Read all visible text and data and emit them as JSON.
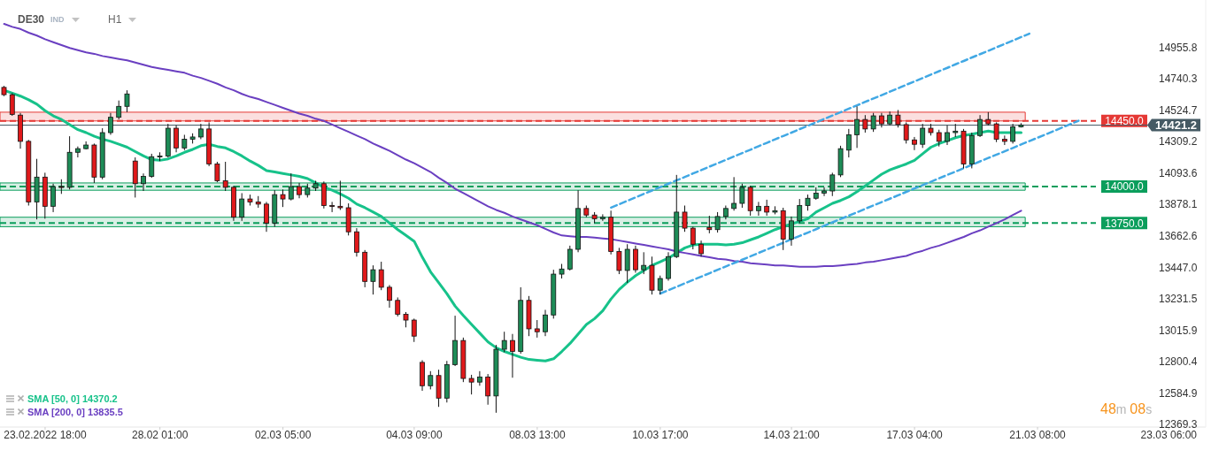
{
  "chart_data": {
    "type": "candlestick",
    "title": "DE30",
    "annotations": [
      "IND",
      "H1",
      "48m 08s"
    ],
    "categories": [
      null,
      null,
      null,
      null,
      null,
      "23.02.2022 18:00",
      null,
      null,
      null,
      null,
      null,
      null,
      null,
      null,
      null,
      null,
      null,
      null,
      null,
      "28.02 01:00",
      null,
      null,
      null,
      null,
      null,
      null,
      null,
      null,
      null,
      null,
      null,
      null,
      null,
      null,
      "02.03 05:00",
      null,
      null,
      null,
      null,
      null,
      null,
      null,
      null,
      null,
      null,
      null,
      null,
      null,
      null,
      null,
      "04.03 09:00",
      null,
      null,
      null,
      null,
      null,
      null,
      null,
      null,
      null,
      null,
      null,
      null,
      null,
      null,
      "08.03 13:00",
      null,
      null,
      null,
      null,
      null,
      null,
      null,
      null,
      null,
      null,
      null,
      null,
      null,
      null,
      "10.03 17:00",
      null,
      null,
      null,
      null,
      null,
      null,
      null,
      null,
      null,
      null,
      null,
      null,
      null,
      null,
      null,
      "14.03 21:00",
      null,
      null,
      null,
      null,
      null,
      null,
      null,
      null,
      null,
      null,
      null,
      null,
      null,
      null,
      "17.03 04:00",
      null,
      null,
      null,
      null,
      null,
      null,
      null,
      null,
      null,
      null,
      null,
      null,
      null,
      null,
      "21.03 08:00",
      null,
      null,
      null,
      null,
      null,
      null,
      null,
      null,
      null,
      null,
      null,
      null,
      null,
      null,
      null,
      "23.03 06:00",
      null,
      null,
      null,
      null
    ],
    "ohlc": [
      [
        14680,
        14690,
        14620,
        14630
      ],
      [
        14630,
        14640,
        14485,
        14495
      ],
      [
        14490,
        14505,
        14260,
        14310
      ],
      [
        14310,
        14320,
        13870,
        13895
      ],
      [
        13895,
        14190,
        13775,
        14065
      ],
      [
        14065,
        14095,
        13780,
        13865
      ],
      [
        13865,
        14020,
        13825,
        14000
      ],
      [
        14000,
        14050,
        13950,
        13995
      ],
      [
        13995,
        14345,
        13980,
        14235
      ],
      [
        14235,
        14275,
        14200,
        14260
      ],
      [
        14260,
        14310,
        14255,
        14285
      ],
      [
        14285,
        14295,
        14025,
        14065
      ],
      [
        14065,
        14400,
        14050,
        14370
      ],
      [
        14370,
        14505,
        14355,
        14475
      ],
      [
        14475,
        14590,
        14460,
        14550
      ],
      [
        14550,
        14660,
        14510,
        14635
      ],
      [
        14175,
        14200,
        13925,
        14020
      ],
      [
        14020,
        14090,
        13970,
        14070
      ],
      [
        14070,
        14225,
        14060,
        14205
      ],
      [
        14205,
        14235,
        14175,
        14210
      ],
      [
        14210,
        14430,
        14200,
        14400
      ],
      [
        14400,
        14420,
        14235,
        14265
      ],
      [
        14265,
        14355,
        14250,
        14325
      ],
      [
        14325,
        14365,
        14295,
        14340
      ],
      [
        14340,
        14430,
        14325,
        14395
      ],
      [
        14395,
        14440,
        14140,
        14155
      ],
      [
        14155,
        14170,
        14030,
        14040
      ],
      [
        14040,
        14170,
        13970,
        13995
      ],
      [
        13995,
        14005,
        13765,
        13790
      ],
      [
        13790,
        13955,
        13765,
        13915
      ],
      [
        13915,
        13945,
        13870,
        13895
      ],
      [
        13895,
        13935,
        13855,
        13880
      ],
      [
        13880,
        13895,
        13690,
        13750
      ],
      [
        13750,
        13975,
        13725,
        13945
      ],
      [
        13945,
        13980,
        13860,
        13915
      ],
      [
        13915,
        14090,
        13905,
        14000
      ],
      [
        14000,
        14025,
        13920,
        13945
      ],
      [
        13945,
        14020,
        13925,
        13990
      ],
      [
        13990,
        14040,
        13970,
        14020
      ],
      [
        14020,
        14035,
        13850,
        13870
      ],
      [
        13870,
        13895,
        13825,
        13865
      ],
      [
        13865,
        14040,
        13840,
        13855
      ],
      [
        13855,
        13885,
        13665,
        13690
      ],
      [
        13690,
        13715,
        13520,
        13550
      ],
      [
        13550,
        13565,
        13310,
        13350
      ],
      [
        13350,
        13460,
        13260,
        13430
      ],
      [
        13430,
        13485,
        13290,
        13310
      ],
      [
        13310,
        13325,
        13170,
        13220
      ],
      [
        13220,
        13240,
        13110,
        13125
      ],
      [
        13125,
        13140,
        13035,
        13085
      ],
      [
        13085,
        13095,
        12935,
        12975
      ],
      [
        12795,
        12810,
        12600,
        12635
      ],
      [
        12635,
        12735,
        12610,
        12705
      ],
      [
        12705,
        12745,
        12490,
        12550
      ],
      [
        12550,
        12805,
        12520,
        12780
      ],
      [
        12780,
        13115,
        12770,
        12945
      ],
      [
        12945,
        12965,
        12660,
        12685
      ],
      [
        12685,
        12710,
        12575,
        12660
      ],
      [
        12660,
        12735,
        12635,
        12695
      ],
      [
        12695,
        12715,
        12505,
        12565
      ],
      [
        12565,
        12915,
        12450,
        12885
      ],
      [
        12885,
        13005,
        12865,
        12945
      ],
      [
        12945,
        12990,
        12690,
        12870
      ],
      [
        12870,
        13310,
        12855,
        13220
      ],
      [
        13220,
        13250,
        12975,
        13025
      ],
      [
        13025,
        13085,
        12965,
        13005
      ],
      [
        13005,
        13155,
        12975,
        13120
      ],
      [
        13120,
        13430,
        13095,
        13400
      ],
      [
        13400,
        13470,
        13370,
        13435
      ],
      [
        13435,
        13595,
        13425,
        13570
      ],
      [
        13570,
        13975,
        13550,
        13850
      ],
      [
        13850,
        13870,
        13790,
        13805
      ],
      [
        13805,
        13825,
        13750,
        13780
      ],
      [
        13780,
        13810,
        13765,
        13790
      ],
      [
        13790,
        13835,
        13535,
        13555
      ],
      [
        13555,
        13580,
        13400,
        13425
      ],
      [
        13425,
        13605,
        13340,
        13570
      ],
      [
        13570,
        13595,
        13410,
        13430
      ],
      [
        13430,
        13550,
        13400,
        13460
      ],
      [
        13460,
        13520,
        13260,
        13290
      ],
      [
        13290,
        13390,
        13260,
        13370
      ],
      [
        13370,
        13550,
        13355,
        13520
      ],
      [
        13520,
        14080,
        13510,
        13825
      ],
      [
        13825,
        13870,
        13690,
        13715
      ],
      [
        13715,
        13725,
        13570,
        13605
      ],
      [
        13605,
        13630,
        13520,
        13540
      ],
      [
        13720,
        13800,
        13680,
        13705
      ],
      [
        13705,
        13825,
        13685,
        13795
      ],
      [
        13795,
        13870,
        13775,
        13850
      ],
      [
        13850,
        14065,
        13835,
        13885
      ],
      [
        13885,
        14020,
        13855,
        13995
      ],
      [
        13995,
        14005,
        13800,
        13835
      ],
      [
        13835,
        13895,
        13800,
        13865
      ],
      [
        13865,
        13910,
        13800,
        13825
      ],
      [
        13825,
        13865,
        13810,
        13835
      ],
      [
        13835,
        13855,
        13565,
        13640
      ],
      [
        13640,
        13795,
        13595,
        13765
      ],
      [
        13765,
        13915,
        13750,
        13870
      ],
      [
        13870,
        13945,
        13835,
        13920
      ],
      [
        13920,
        13995,
        13910,
        13955
      ],
      [
        13955,
        13995,
        13935,
        13970
      ],
      [
        13970,
        14095,
        13935,
        14080
      ],
      [
        14080,
        14280,
        14065,
        14260
      ],
      [
        14250,
        14395,
        14200,
        14355
      ],
      [
        14355,
        14550,
        14265,
        14460
      ],
      [
        14460,
        14490,
        14370,
        14395
      ],
      [
        14395,
        14505,
        14375,
        14485
      ],
      [
        14485,
        14505,
        14405,
        14430
      ],
      [
        14430,
        14515,
        14420,
        14490
      ],
      [
        14490,
        14525,
        14405,
        14425
      ],
      [
        14425,
        14440,
        14295,
        14320
      ],
      [
        14320,
        14340,
        14250,
        14290
      ],
      [
        14290,
        14430,
        14265,
        14400
      ],
      [
        14400,
        14430,
        14350,
        14370
      ],
      [
        14370,
        14390,
        14275,
        14310
      ],
      [
        14310,
        14420,
        14285,
        14370
      ],
      [
        14370,
        14430,
        14340,
        14380
      ],
      [
        14380,
        14395,
        14125,
        14155
      ],
      [
        14155,
        14370,
        14125,
        14350
      ],
      [
        14350,
        14490,
        14340,
        14460
      ],
      [
        14460,
        14510,
        14420,
        14430
      ],
      [
        14430,
        14440,
        14305,
        14325
      ],
      [
        14325,
        14350,
        14285,
        14310
      ],
      [
        14310,
        14430,
        14295,
        14410
      ],
      [
        14410,
        14435,
        14405,
        14421.2
      ],
      null,
      null,
      null,
      null,
      null,
      null,
      null,
      null,
      null,
      null,
      null,
      null,
      null,
      null,
      null,
      null,
      null,
      null,
      null,
      null,
      null,
      null
    ],
    "colors": [
      "#e0191b",
      "#e0191b",
      "#e0191b",
      "#e0191b",
      "#1e8c57",
      "#e0191b",
      "#1e8c57",
      "#e0191b",
      "#1e8c57",
      "#1e8c57",
      "#1e8c57",
      "#e0191b",
      "#1e8c57",
      "#1e8c57",
      "#1e8c57",
      "#1e8c57",
      "#e0191b",
      "#1e8c57",
      "#1e8c57",
      "#1e8c57",
      "#1e8c57",
      "#e0191b",
      "#1e8c57",
      "#1e8c57",
      "#1e8c57",
      "#e0191b",
      "#e0191b",
      "#e0191b",
      "#e0191b",
      "#1e8c57",
      "#e0191b",
      "#e0191b",
      "#e0191b",
      "#1e8c57",
      "#e0191b",
      "#1e8c57",
      "#e0191b",
      "#1e8c57",
      "#1e8c57",
      "#e0191b",
      "#e0191b",
      "#e0191b",
      "#e0191b",
      "#e0191b",
      "#e0191b",
      "#1e8c57",
      "#e0191b",
      "#e0191b",
      "#e0191b",
      "#e0191b",
      "#e0191b",
      "#e0191b",
      "#1e8c57",
      "#e0191b",
      "#1e8c57",
      "#1e8c57",
      "#e0191b",
      "#e0191b",
      "#1e8c57",
      "#e0191b",
      "#1e8c57",
      "#1e8c57",
      "#e0191b",
      "#1e8c57",
      "#e0191b",
      "#e0191b",
      "#1e8c57",
      "#1e8c57",
      "#1e8c57",
      "#1e8c57",
      "#1e8c57",
      "#e0191b",
      "#e0191b",
      "#1e8c57",
      "#e0191b",
      "#e0191b",
      "#1e8c57",
      "#e0191b",
      "#1e8c57",
      "#e0191b",
      "#1e8c57",
      "#1e8c57",
      "#1e8c57",
      "#e0191b",
      "#e0191b",
      "#e0191b",
      "#e0191b",
      "#1e8c57",
      "#1e8c57",
      "#1e8c57",
      "#1e8c57",
      "#e0191b",
      "#1e8c57",
      "#e0191b",
      "#1e8c57",
      "#e0191b",
      "#1e8c57",
      "#1e8c57",
      "#1e8c57",
      "#1e8c57",
      "#1e8c57",
      "#1e8c57",
      "#1e8c57",
      "#1e8c57",
      "#1e8c57",
      "#e0191b",
      "#1e8c57",
      "#e0191b",
      "#1e8c57",
      "#e0191b",
      "#e0191b",
      "#e0191b",
      "#1e8c57",
      "#e0191b",
      "#e0191b",
      "#1e8c57",
      "#1e8c57",
      "#e0191b",
      "#1e8c57",
      "#1e8c57",
      "#e0191b",
      "#e0191b",
      "#e0191b",
      "#1e8c57",
      "#1e8c57",
      null,
      null,
      null,
      null,
      null,
      null,
      null,
      null,
      null,
      null,
      null,
      null,
      null,
      null,
      null,
      null,
      null,
      null,
      null,
      null,
      null,
      null
    ],
    "series": [
      {
        "name": "SMA [50, 0] 14370.2",
        "type": "line",
        "color": "#17c28a",
        "values": [
          14660,
          14640,
          14620,
          14595,
          14565,
          14520,
          14485,
          14460,
          14425,
          14390,
          14370,
          14345,
          14325,
          14310,
          14290,
          14270,
          14240,
          14210,
          14185,
          14180,
          14190,
          14210,
          14235,
          14255,
          14280,
          14290,
          14275,
          14265,
          14240,
          14210,
          14175,
          14145,
          14110,
          14100,
          14090,
          14080,
          14070,
          14055,
          14025,
          13995,
          13975,
          13950,
          13920,
          13880,
          13855,
          13825,
          13795,
          13750,
          13705,
          13665,
          13625,
          13515,
          13415,
          13340,
          13265,
          13180,
          13115,
          13055,
          12995,
          12935,
          12895,
          12870,
          12850,
          12830,
          12815,
          12810,
          12805,
          12820,
          12870,
          12925,
          12990,
          13055,
          13095,
          13150,
          13230,
          13295,
          13345,
          13390,
          13425,
          13460,
          13485,
          13510,
          13545,
          13580,
          13600,
          13605,
          13605,
          13605,
          13600,
          13605,
          13615,
          13635,
          13655,
          13680,
          13705,
          13725,
          13745,
          13760,
          13780,
          13825,
          13855,
          13885,
          13905,
          13930,
          13965,
          14005,
          14045,
          14085,
          14115,
          14135,
          14155,
          14180,
          14225,
          14270,
          14295,
          14315,
          14335,
          14350,
          14360,
          14370,
          14380,
          14370,
          14370,
          14370,
          14370,
          null,
          null,
          null,
          null,
          null,
          null,
          null,
          null,
          null,
          null,
          null,
          null,
          null,
          null,
          null,
          null,
          null,
          null,
          null,
          null,
          null,
          null
        ]
      },
      {
        "name": "SMA [200, 0] 13835.5",
        "type": "line",
        "color": "#6a3fc1",
        "values": [
          15115,
          15095,
          15080,
          15055,
          15035,
          15010,
          14990,
          14970,
          14950,
          14935,
          14920,
          14910,
          14895,
          14885,
          14875,
          14865,
          14850,
          14835,
          14820,
          14810,
          14800,
          14790,
          14780,
          14760,
          14745,
          14725,
          14705,
          14680,
          14660,
          14635,
          14615,
          14600,
          14580,
          14560,
          14540,
          14520,
          14500,
          14485,
          14465,
          14450,
          14425,
          14400,
          14375,
          14350,
          14325,
          14295,
          14270,
          14245,
          14215,
          14185,
          14160,
          14130,
          14100,
          14060,
          14025,
          13985,
          13955,
          13925,
          13895,
          13865,
          13840,
          13820,
          13795,
          13775,
          13755,
          13735,
          13710,
          13685,
          13665,
          13660,
          13655,
          13655,
          13650,
          13645,
          13640,
          13630,
          13620,
          13610,
          13600,
          13590,
          13580,
          13570,
          13555,
          13545,
          13535,
          13525,
          13515,
          13505,
          13500,
          13490,
          13485,
          13475,
          13470,
          13465,
          13460,
          13460,
          13455,
          13450,
          13450,
          13450,
          13455,
          13455,
          13460,
          13465,
          13470,
          13480,
          13485,
          13495,
          13505,
          13515,
          13525,
          13545,
          13560,
          13580,
          13595,
          13615,
          13635,
          13655,
          13680,
          13700,
          13725,
          13750,
          13775,
          13805,
          13835,
          null,
          null,
          null,
          null,
          null,
          null,
          null,
          null,
          null,
          null,
          null,
          null,
          null,
          null,
          null,
          null,
          null,
          null,
          null,
          null,
          null,
          null
        ]
      },
      {
        "type": "line",
        "color": "#41a8e4",
        "line_style": "dashed",
        "values": [
          null,
          null,
          null,
          null,
          null,
          null,
          null,
          null,
          null,
          null,
          null,
          null,
          null,
          null,
          null,
          null,
          null,
          null,
          null,
          null,
          null,
          null,
          null,
          null,
          null,
          null,
          null,
          null,
          null,
          null,
          null,
          null,
          null,
          null,
          null,
          null,
          null,
          null,
          null,
          null,
          null,
          null,
          null,
          null,
          null,
          null,
          null,
          null,
          null,
          null,
          null,
          null,
          null,
          null,
          null,
          null,
          null,
          null,
          null,
          null,
          null,
          null,
          null,
          null,
          null,
          null,
          null,
          null,
          null,
          null,
          null,
          null,
          null,
          null,
          13856,
          13879,
          13903,
          13926,
          13950,
          13973,
          13996,
          14020,
          14043,
          14066,
          14090,
          14113,
          14137,
          14160,
          14183,
          14207,
          14230,
          14253,
          14277,
          14300,
          14324,
          14347,
          14370,
          14394,
          14417,
          14440,
          14464,
          14487,
          14510,
          14534,
          14557,
          14581,
          14604,
          14627,
          14651,
          14674,
          14698,
          14721,
          14744,
          14768,
          14791,
          14814,
          14838,
          14861,
          14885,
          14908,
          14931,
          14955,
          14978,
          15001,
          15025,
          15048,
          null,
          null,
          null,
          null,
          null,
          null,
          null,
          null,
          null,
          null,
          null,
          null,
          null,
          null,
          null,
          null,
          null,
          null,
          null,
          null,
          null
        ]
      },
      {
        "type": "line",
        "color": "#41a8e4",
        "line_style": "dashed",
        "values": [
          null,
          null,
          null,
          null,
          null,
          null,
          null,
          null,
          null,
          null,
          null,
          null,
          null,
          null,
          null,
          null,
          null,
          null,
          null,
          null,
          null,
          null,
          null,
          null,
          null,
          null,
          null,
          null,
          null,
          null,
          null,
          null,
          null,
          null,
          null,
          null,
          null,
          null,
          null,
          null,
          null,
          null,
          null,
          null,
          null,
          null,
          null,
          null,
          null,
          null,
          null,
          null,
          null,
          null,
          null,
          null,
          null,
          null,
          null,
          null,
          null,
          null,
          null,
          null,
          null,
          null,
          null,
          null,
          null,
          null,
          null,
          null,
          null,
          null,
          null,
          null,
          null,
          null,
          null,
          null,
          13267,
          13290,
          13313,
          13337,
          13360,
          13383,
          13406,
          13430,
          13453,
          13476,
          13499,
          13522,
          13546,
          13569,
          13592,
          13615,
          13639,
          13662,
          13685,
          13708,
          13731,
          13755,
          13778,
          13801,
          13824,
          13848,
          13871,
          13894,
          13917,
          13940,
          13964,
          13987,
          14010,
          14033,
          14057,
          14080,
          14103,
          14126,
          14149,
          14173,
          14196,
          14219,
          14242,
          14265,
          14289,
          14312,
          14335,
          14358,
          14381,
          14405,
          14428,
          14451,
          null,
          null,
          null,
          null,
          null,
          null,
          null,
          null,
          null,
          null,
          null,
          null,
          null,
          null,
          null
        ]
      }
    ],
    "ref_lines": [
      {
        "axis": "y",
        "value": 14450,
        "label": "14450.0",
        "color": "#e53935",
        "line_style": "dashed"
      },
      {
        "axis": "y",
        "value": 14000,
        "label": "14000.0",
        "color": "#0b9e5c",
        "line_style": "dashed"
      },
      {
        "axis": "y",
        "value": 13750,
        "label": "13750.0",
        "color": "#0b9e5c",
        "line_style": "dashed"
      },
      {
        "axis": "y",
        "value": 14421.2,
        "label": "14421.2",
        "color": "#455a64",
        "line_style": "solid"
      }
    ],
    "bands": [
      {
        "axis": "y",
        "from": 14450,
        "to": 14510,
        "color": "#e53935"
      },
      {
        "axis": "y",
        "from": 13975,
        "to": 14025,
        "color": "#0b9e5c"
      },
      {
        "axis": "y",
        "from": 13725,
        "to": 13790,
        "color": "#0b9e5c"
      }
    ],
    "ylim": [
      12352,
      15279
    ],
    "yticks": [
      12369.3,
      12584.9,
      12800.4,
      13015.9,
      13231.5,
      {
        "value": 13447,
        "label": "13447.0"
      },
      13662.6,
      13878.1,
      14093.6,
      14309.2,
      14524.7,
      14740.3,
      14955.8
    ],
    "legend": "bottom left"
  }
}
